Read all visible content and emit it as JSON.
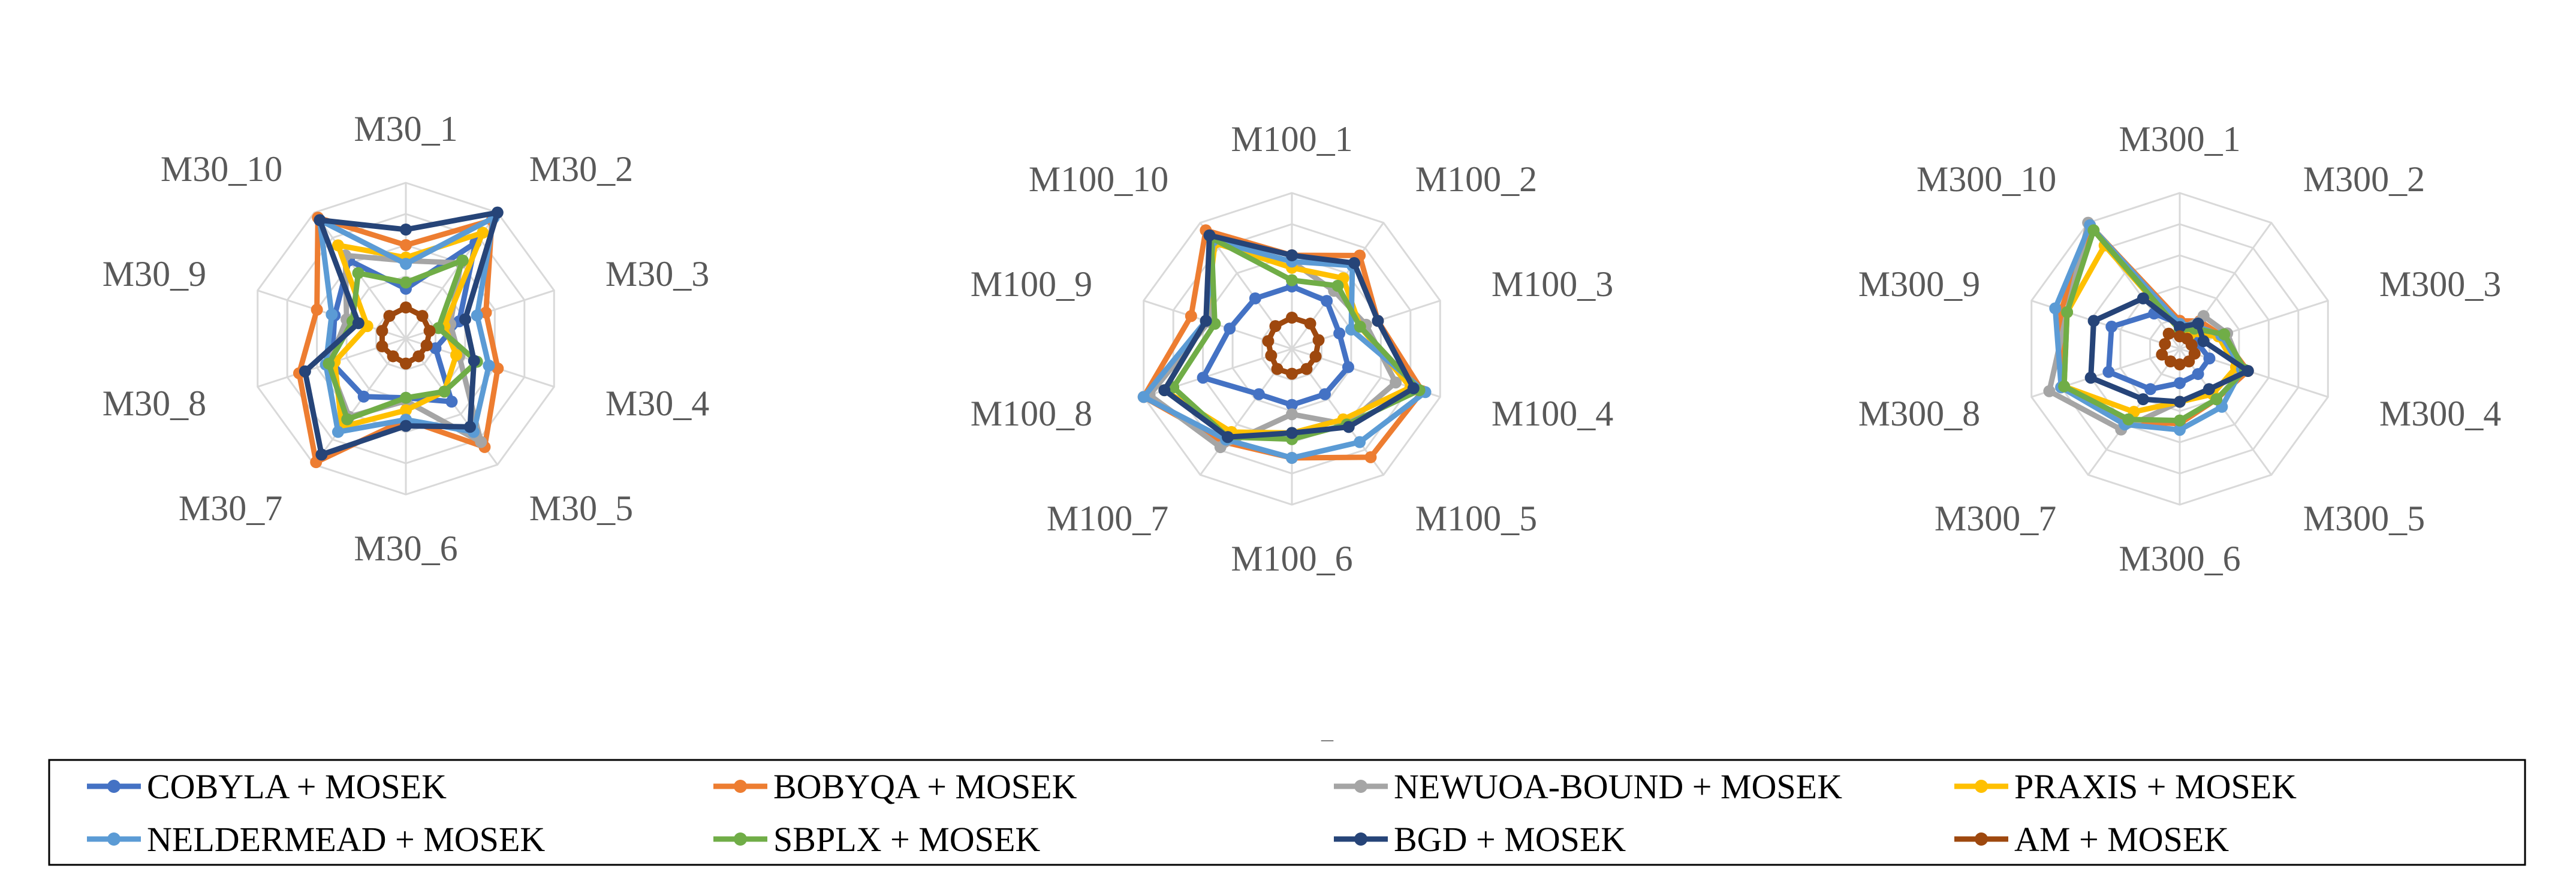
{
  "colors": {
    "grid": "#d9d9d9",
    "legend_border": "#000000",
    "label_text": "#595959"
  },
  "under_mark": "_",
  "chart_data": [
    {
      "type": "radar",
      "name": "M30",
      "axes": [
        "M30_1",
        "M30_2",
        "M30_3",
        "M30_4",
        "M30_5",
        "M30_6",
        "M30_7",
        "M30_8",
        "M30_9",
        "M30_10"
      ],
      "rlim": [
        0,
        5
      ],
      "grid_levels": 5,
      "grid": true,
      "series": [
        {
          "name": "COBYLA + MOSEK",
          "color": "#4472c4",
          "values": [
            1.6,
            3.8,
            1.8,
            1.0,
            2.5,
            1.9,
            2.3,
            2.5,
            2.4,
            3.1
          ]
        },
        {
          "name": "BOBYQA + MOSEK",
          "color": "#ed7d31",
          "values": [
            3.0,
            4.7,
            2.7,
            3.1,
            4.3,
            2.6,
            4.9,
            3.6,
            3.0,
            4.8
          ]
        },
        {
          "name": "NEWUOA-BOUND + MOSEK",
          "color": "#a5a5a5",
          "values": [
            2.5,
            3.0,
            1.5,
            1.8,
            4.1,
            2.0,
            3.1,
            2.6,
            2.0,
            3.3
          ]
        },
        {
          "name": "PRAXIS + MOSEK",
          "color": "#ffc000",
          "values": [
            2.6,
            4.2,
            1.3,
            1.7,
            2.1,
            2.3,
            3.5,
            2.4,
            1.3,
            3.7
          ]
        },
        {
          "name": "NELDERMEAD + MOSEK",
          "color": "#5b9bd5",
          "values": [
            2.4,
            4.8,
            2.4,
            2.8,
            3.7,
            2.6,
            3.7,
            2.7,
            2.5,
            4.7
          ]
        },
        {
          "name": "SBPLX + MOSEK",
          "color": "#70ad47",
          "values": [
            1.8,
            3.1,
            1.1,
            2.4,
            2.1,
            1.9,
            3.2,
            2.6,
            1.8,
            2.6
          ]
        },
        {
          "name": "BGD + MOSEK",
          "color": "#264478",
          "values": [
            3.5,
            5.0,
            2.0,
            2.3,
            3.5,
            2.8,
            4.6,
            3.4,
            1.6,
            4.7
          ]
        },
        {
          "name": "AM + MOSEK",
          "color": "#9e480e",
          "values": [
            1.0,
            0.9,
            0.8,
            0.7,
            0.7,
            0.8,
            0.7,
            0.8,
            0.8,
            0.9
          ]
        }
      ]
    },
    {
      "type": "radar",
      "name": "M100",
      "axes": [
        "M100_1",
        "M100_2",
        "M100_3",
        "M100_4",
        "M100_5",
        "M100_6",
        "M100_7",
        "M100_8",
        "M100_9",
        "M100_10"
      ],
      "rlim": [
        0,
        5
      ],
      "grid_levels": 5,
      "grid": true,
      "series": [
        {
          "name": "COBYLA + MOSEK",
          "color": "#4472c4",
          "values": [
            2.0,
            1.9,
            1.6,
            1.9,
            1.8,
            1.8,
            1.8,
            3.0,
            2.1,
            2.0
          ]
        },
        {
          "name": "BOBYQA + MOSEK",
          "color": "#ed7d31",
          "values": [
            3.0,
            3.7,
            2.9,
            4.4,
            4.3,
            3.5,
            3.7,
            5.0,
            3.4,
            4.7
          ]
        },
        {
          "name": "NEWUOA-BOUND + MOSEK",
          "color": "#a5a5a5",
          "values": [
            2.8,
            2.3,
            2.5,
            3.5,
            3.0,
            2.1,
            3.9,
            4.8,
            2.8,
            4.3
          ]
        },
        {
          "name": "PRAXIS + MOSEK",
          "color": "#ffc000",
          "values": [
            2.6,
            2.8,
            2.3,
            4.0,
            2.8,
            2.7,
            3.3,
            4.3,
            2.9,
            4.2
          ]
        },
        {
          "name": "NELDERMEAD + MOSEK",
          "color": "#5b9bd5",
          "values": [
            2.8,
            3.3,
            2.0,
            4.5,
            3.7,
            3.5,
            3.6,
            5.0,
            2.9,
            4.3
          ]
        },
        {
          "name": "SBPLX + MOSEK",
          "color": "#70ad47",
          "values": [
            2.2,
            2.5,
            2.3,
            4.3,
            3.0,
            2.9,
            3.5,
            4.0,
            2.6,
            4.4
          ]
        },
        {
          "name": "BGD + MOSEK",
          "color": "#264478",
          "values": [
            3.0,
            3.4,
            2.9,
            4.1,
            3.1,
            2.7,
            3.5,
            4.3,
            2.9,
            4.5
          ]
        },
        {
          "name": "AM + MOSEK",
          "color": "#9e480e",
          "values": [
            1.0,
            1.0,
            0.9,
            0.8,
            0.8,
            0.8,
            0.8,
            0.7,
            0.8,
            0.9
          ]
        }
      ]
    },
    {
      "type": "radar",
      "name": "M300",
      "axes": [
        "M300_1",
        "M300_2",
        "M300_3",
        "M300_4",
        "M300_5",
        "M300_6",
        "M300_7",
        "M300_8",
        "M300_9",
        "M300_10"
      ],
      "rlim": [
        0,
        5
      ],
      "grid_levels": 5,
      "grid": true,
      "series": [
        {
          "name": "COBYLA + MOSEK",
          "color": "#4472c4",
          "values": [
            0.8,
            0.6,
            0.6,
            1.0,
            1.0,
            1.1,
            1.6,
            2.4,
            2.3,
            1.4
          ]
        },
        {
          "name": "BOBYQA + MOSEK",
          "color": "#ed7d31",
          "values": [
            0.9,
            1.1,
            1.4,
            2.3,
            2.0,
            2.4,
            2.9,
            4.0,
            4.0,
            4.9
          ]
        },
        {
          "name": "NEWUOA-BOUND + MOSEK",
          "color": "#a5a5a5",
          "values": [
            0.6,
            1.3,
            1.6,
            2.1,
            1.7,
            1.7,
            3.2,
            4.4,
            3.8,
            5.0
          ]
        },
        {
          "name": "PRAXIS + MOSEK",
          "color": "#ffc000",
          "values": [
            0.6,
            0.6,
            1.3,
            1.9,
            1.8,
            1.7,
            2.5,
            3.9,
            3.8,
            4.1
          ]
        },
        {
          "name": "NELDERMEAD + MOSEK",
          "color": "#5b9bd5",
          "values": [
            0.8,
            0.9,
            1.4,
            2.1,
            2.3,
            2.6,
            3.0,
            4.0,
            4.2,
            4.9
          ]
        },
        {
          "name": "SBPLX + MOSEK",
          "color": "#70ad47",
          "values": [
            0.6,
            0.8,
            1.5,
            2.2,
            2.0,
            2.3,
            2.8,
            3.9,
            3.8,
            4.7
          ]
        },
        {
          "name": "BGD + MOSEK",
          "color": "#264478",
          "values": [
            0.7,
            1.0,
            0.8,
            2.3,
            1.6,
            1.7,
            2.0,
            3.0,
            2.9,
            2.0
          ]
        },
        {
          "name": "AM + MOSEK",
          "color": "#9e480e",
          "values": [
            0.4,
            0.4,
            0.4,
            0.5,
            0.5,
            0.5,
            0.5,
            0.6,
            0.5,
            0.6
          ]
        }
      ]
    }
  ],
  "legend": {
    "items": [
      "COBYLA + MOSEK",
      "BOBYQA + MOSEK",
      "NEWUOA-BOUND + MOSEK",
      "PRAXIS + MOSEK",
      "NELDERMEAD + MOSEK",
      "SBPLX + MOSEK",
      "BGD + MOSEK",
      "AM + MOSEK"
    ],
    "placement": "bottom"
  }
}
